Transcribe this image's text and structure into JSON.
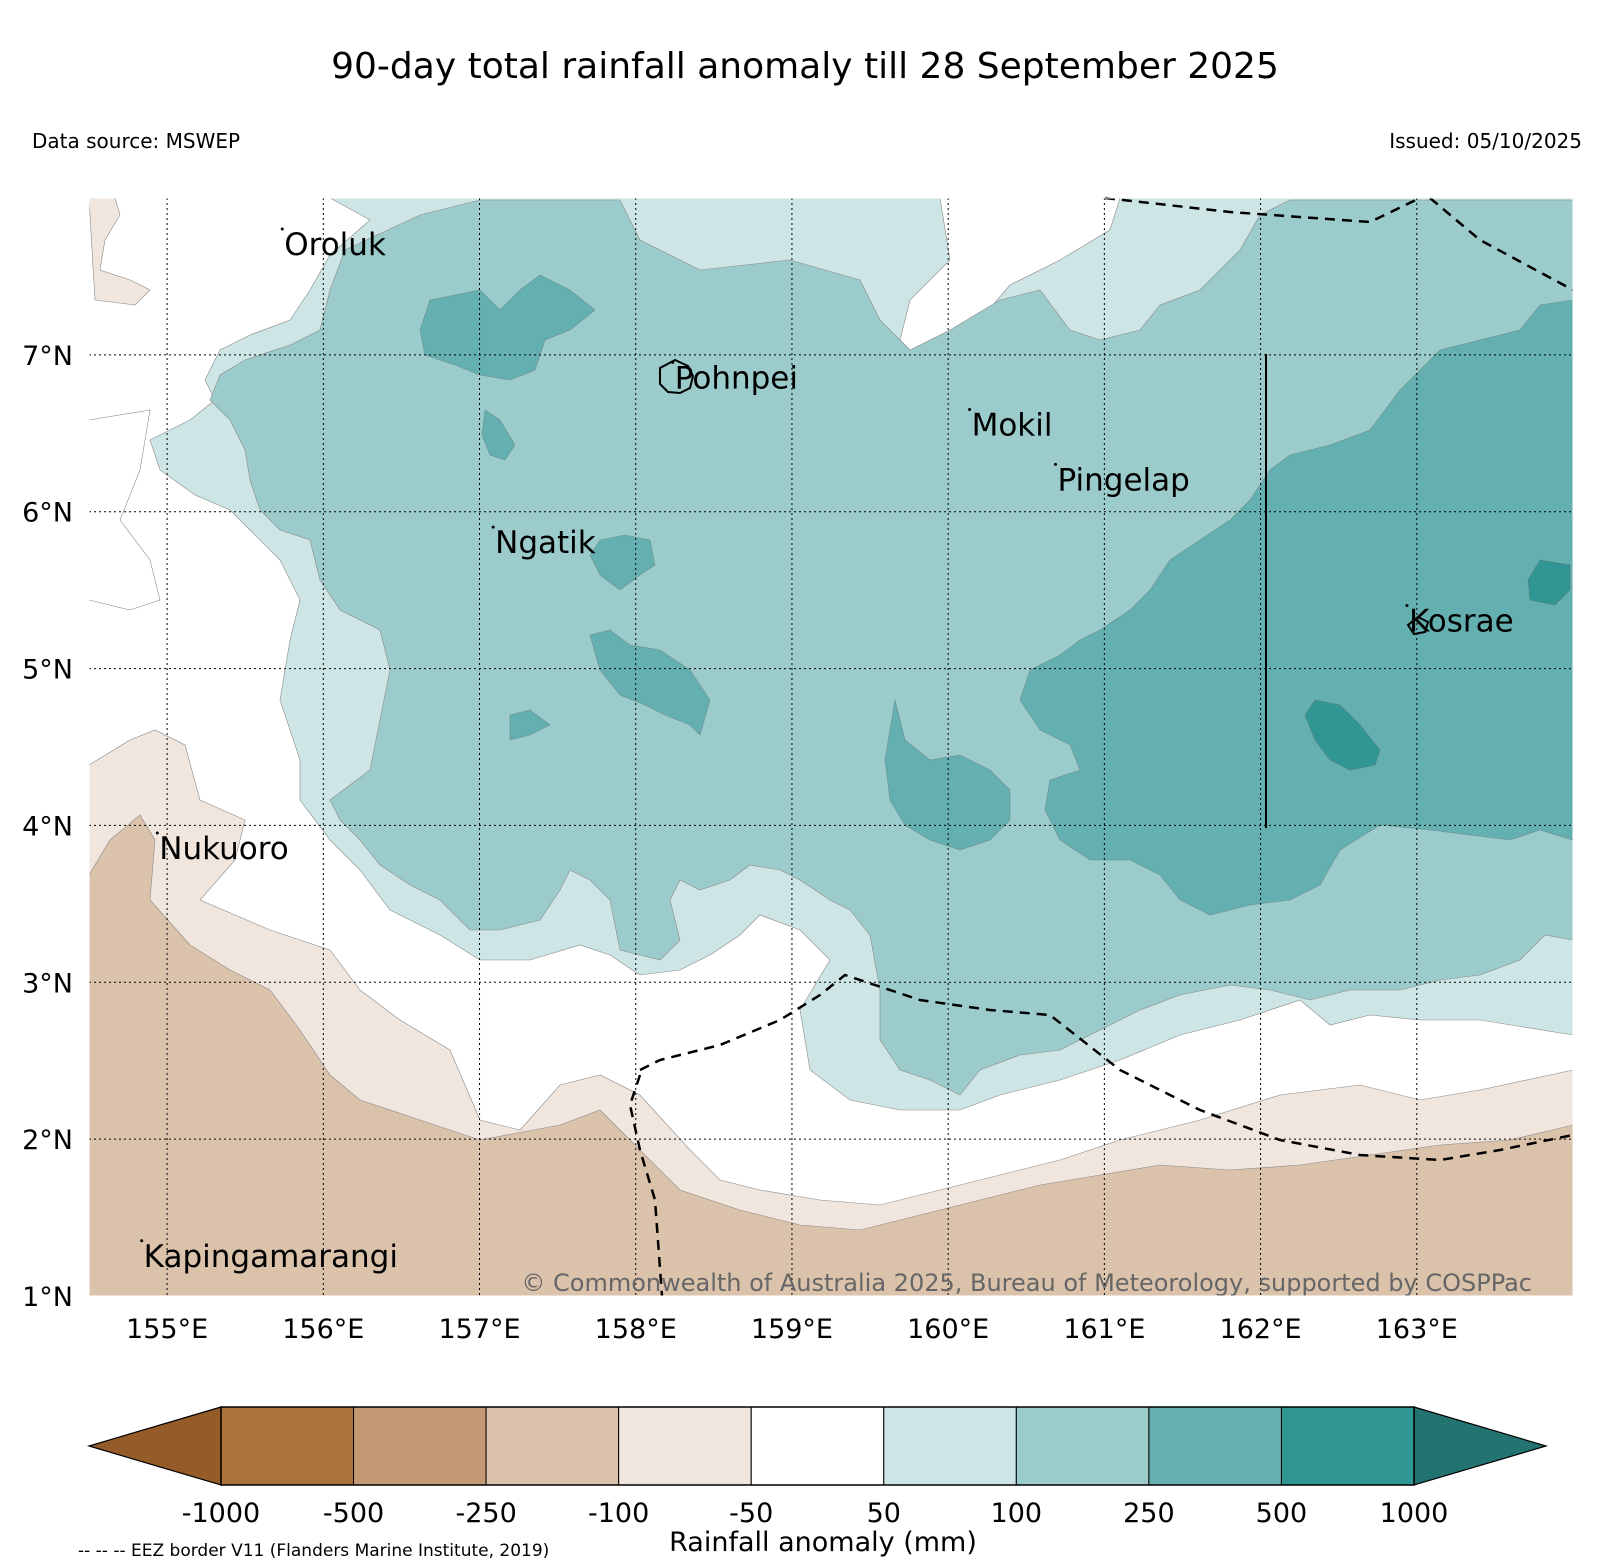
{
  "title": "90-day total rainfall anomaly till 28 September 2025",
  "data_source": "Data source: MSWEP",
  "issued": "Issued: 05/10/2025",
  "copyright": "© Commonwealth of Australia 2025, Bureau of Meteorology, supported by COSPPac",
  "eez_note": "-- -- -- EEZ border V11 (Flanders Marine Institute, 2019)",
  "map": {
    "lon_range": [
      154.5,
      164
    ],
    "lat_range": [
      1,
      8
    ],
    "lon_ticks": [
      "155°E",
      "156°E",
      "157°E",
      "158°E",
      "159°E",
      "160°E",
      "161°E",
      "162°E",
      "163°E"
    ],
    "lat_ticks": [
      "7°N",
      "6°N",
      "5°N",
      "4°N",
      "3°N",
      "2°N",
      "1°N"
    ]
  },
  "places": [
    {
      "name": "Oroluk",
      "lon": 155.75,
      "lat": 7.7
    },
    {
      "name": "Pohnpei",
      "lon": 158.25,
      "lat": 6.85
    },
    {
      "name": "Mokil",
      "lon": 160.15,
      "lat": 6.55
    },
    {
      "name": "Pingelap",
      "lon": 160.7,
      "lat": 6.2
    },
    {
      "name": "Ngatik",
      "lon": 157.1,
      "lat": 5.8
    },
    {
      "name": "Kosrae",
      "lon": 162.95,
      "lat": 5.3
    },
    {
      "name": "Nukuoro",
      "lon": 154.95,
      "lat": 3.85
    },
    {
      "name": "Kapingamarangi",
      "lon": 154.85,
      "lat": 1.25
    }
  ],
  "legend": {
    "title": "Rainfall anomaly (mm)",
    "ticks": [
      "-1000",
      "-500",
      "-250",
      "-100",
      "-50",
      "50",
      "100",
      "250",
      "500",
      "1000"
    ],
    "colors": {
      "below_min": "#955b28",
      "bins": [
        "#ab733c",
        "#c39a73",
        "#dbc3ab",
        "#f0e6de",
        "#ffffff",
        "#cde5e4",
        "#9ccbcb",
        "#64afb0",
        "#2f9693"
      ],
      "above_max": "#237470"
    }
  }
}
